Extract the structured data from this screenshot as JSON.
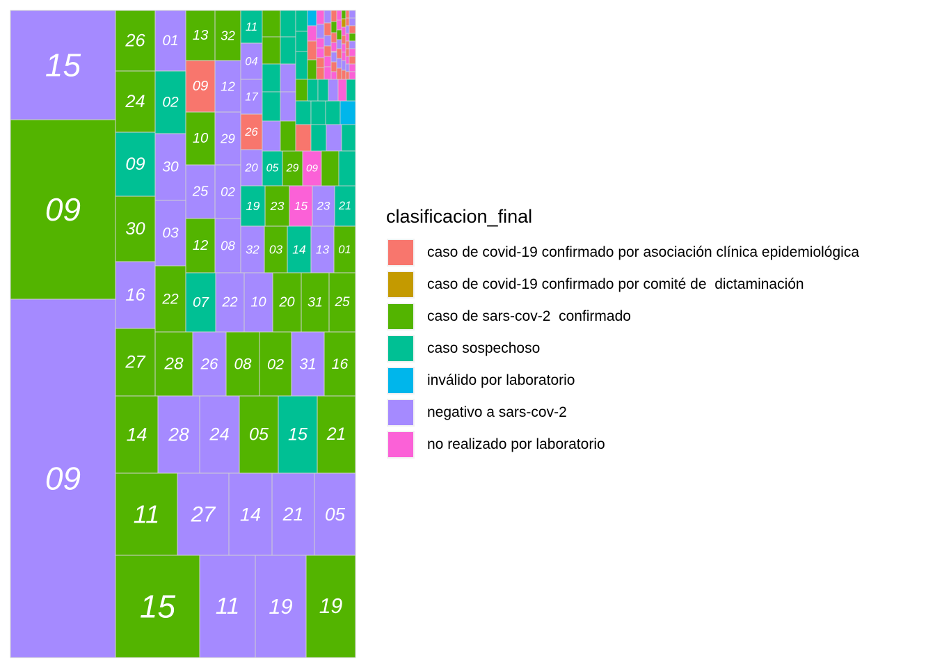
{
  "chart_data": {
    "type": "treemap",
    "fill_variable": "clasificacion_final",
    "legend_position": "right",
    "categories": [
      {
        "key": "asoc",
        "label": "caso de covid-19 confirmado por asociación clínica epidemiológica",
        "color": "#F8766D"
      },
      {
        "key": "comite",
        "label": "caso de covid-19 confirmado por comité de  dictaminación",
        "color": "#C49A00"
      },
      {
        "key": "conf",
        "label": "caso de sars-cov-2  confirmado",
        "color": "#53B400"
      },
      {
        "key": "sosp",
        "label": "caso sospechoso",
        "color": "#00C094"
      },
      {
        "key": "inval",
        "label": "inválido por laboratorio",
        "color": "#00B6EB"
      },
      {
        "key": "neg",
        "label": "negativo a sars-cov-2",
        "color": "#A58AFF"
      },
      {
        "key": "noreal",
        "label": "no realizado por laboratorio",
        "color": "#FB61D7"
      }
    ],
    "tiles": [
      {
        "label": "15",
        "category": "neg"
      },
      {
        "label": "09",
        "category": "conf"
      },
      {
        "label": "09",
        "category": "neg"
      },
      {
        "label": "26",
        "category": "conf"
      },
      {
        "label": "01",
        "category": "neg"
      },
      {
        "label": "24",
        "category": "conf"
      },
      {
        "label": "02",
        "category": "sosp"
      },
      {
        "label": "09",
        "category": "sosp"
      },
      {
        "label": "30",
        "category": "neg"
      },
      {
        "label": "30",
        "category": "conf"
      },
      {
        "label": "03",
        "category": "neg"
      },
      {
        "label": "16",
        "category": "neg"
      },
      {
        "label": "22",
        "category": "conf"
      },
      {
        "label": "13",
        "category": "conf"
      },
      {
        "label": "32",
        "category": "conf"
      },
      {
        "label": "09",
        "category": "asoc"
      },
      {
        "label": "12",
        "category": "neg"
      },
      {
        "label": "10",
        "category": "conf"
      },
      {
        "label": "29",
        "category": "neg"
      },
      {
        "label": "25",
        "category": "neg"
      },
      {
        "label": "02",
        "category": "neg"
      },
      {
        "label": "12",
        "category": "conf"
      },
      {
        "label": "08",
        "category": "neg"
      },
      {
        "label": "11",
        "category": "sosp"
      },
      {
        "label": "04",
        "category": "neg"
      },
      {
        "label": "17",
        "category": "neg"
      },
      {
        "label": "26",
        "category": "asoc"
      },
      {
        "label": "20",
        "category": "neg"
      },
      {
        "label": "05",
        "category": "sosp"
      },
      {
        "label": "29",
        "category": "conf"
      },
      {
        "label": "09",
        "category": "noreal"
      },
      {
        "label": "19",
        "category": "sosp"
      },
      {
        "label": "23",
        "category": "conf"
      },
      {
        "label": "15",
        "category": "noreal"
      },
      {
        "label": "23",
        "category": "neg"
      },
      {
        "label": "21",
        "category": "sosp"
      },
      {
        "label": "32",
        "category": "neg"
      },
      {
        "label": "03",
        "category": "conf"
      },
      {
        "label": "14",
        "category": "sosp"
      },
      {
        "label": "13",
        "category": "neg"
      },
      {
        "label": "01",
        "category": "conf"
      },
      {
        "label": "07",
        "category": "sosp"
      },
      {
        "label": "22",
        "category": "neg"
      },
      {
        "label": "10",
        "category": "neg"
      },
      {
        "label": "20",
        "category": "conf"
      },
      {
        "label": "31",
        "category": "conf"
      },
      {
        "label": "25",
        "category": "conf"
      },
      {
        "label": "27",
        "category": "conf"
      },
      {
        "label": "28",
        "category": "conf"
      },
      {
        "label": "26",
        "category": "neg"
      },
      {
        "label": "08",
        "category": "conf"
      },
      {
        "label": "02",
        "category": "conf"
      },
      {
        "label": "31",
        "category": "neg"
      },
      {
        "label": "16",
        "category": "conf"
      },
      {
        "label": "14",
        "category": "conf"
      },
      {
        "label": "28",
        "category": "neg"
      },
      {
        "label": "24",
        "category": "neg"
      },
      {
        "label": "05",
        "category": "conf"
      },
      {
        "label": "15",
        "category": "sosp"
      },
      {
        "label": "21",
        "category": "conf"
      },
      {
        "label": "11",
        "category": "conf"
      },
      {
        "label": "27",
        "category": "neg"
      },
      {
        "label": "14",
        "category": "neg"
      },
      {
        "label": "21",
        "category": "neg"
      },
      {
        "label": "05",
        "category": "neg"
      },
      {
        "label": "15",
        "category": "conf"
      },
      {
        "label": "11",
        "category": "neg"
      },
      {
        "label": "19",
        "category": "neg"
      },
      {
        "label": "19",
        "category": "conf"
      }
    ]
  }
}
